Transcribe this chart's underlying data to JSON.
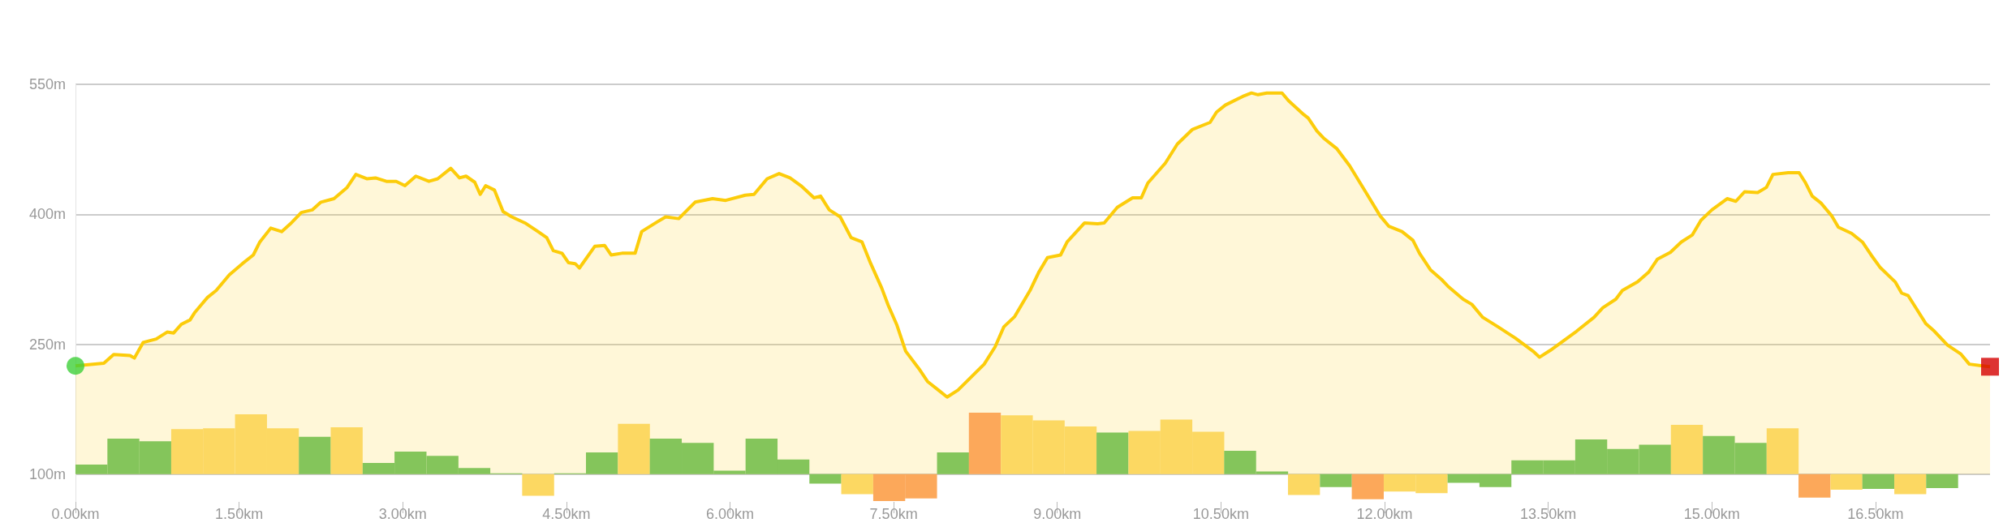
{
  "chart_data": {
    "type": "area",
    "xlim": [
      0,
      17.55
    ],
    "ylim": [
      68,
      550
    ],
    "xticks": [
      {
        "value": 0,
        "label": "0.00km"
      },
      {
        "value": 1.5,
        "label": "1.50km"
      },
      {
        "value": 3,
        "label": "3.00km"
      },
      {
        "value": 4.5,
        "label": "4.50km"
      },
      {
        "value": 6,
        "label": "6.00km"
      },
      {
        "value": 7.5,
        "label": "7.50km"
      },
      {
        "value": 9,
        "label": "9.00km"
      },
      {
        "value": 10.5,
        "label": "10.50km"
      },
      {
        "value": 12,
        "label": "12.00km"
      },
      {
        "value": 13.5,
        "label": "13.50km"
      },
      {
        "value": 15,
        "label": "15.00km"
      },
      {
        "value": 16.5,
        "label": "16.50km"
      }
    ],
    "yticks": [
      {
        "value": 100,
        "label": "100m"
      },
      {
        "value": 250,
        "label": "250m"
      },
      {
        "value": 400,
        "label": "400m"
      },
      {
        "value": 550,
        "label": "550m"
      }
    ],
    "grid": "y",
    "series": [
      {
        "type": "bar",
        "x": [
          0.146,
          0.439,
          0.731,
          1.024,
          1.316,
          1.609,
          1.901,
          2.194,
          2.486,
          2.779,
          3.071,
          3.364,
          3.656,
          3.949,
          4.241,
          4.534,
          4.826,
          5.119,
          5.411,
          5.704,
          5.996,
          6.289,
          6.581,
          6.874,
          7.166,
          7.459,
          7.751,
          8.044,
          8.336,
          8.629,
          8.921,
          9.214,
          9.506,
          9.799,
          10.091,
          10.384,
          10.676,
          10.969,
          11.261,
          11.554,
          11.846,
          12.139,
          12.431,
          12.724,
          13.016,
          13.309,
          13.601,
          13.894,
          14.186,
          14.479,
          14.771,
          15.064,
          15.356,
          15.649,
          15.941,
          16.234,
          16.526,
          16.819,
          17.111
        ],
        "base": [
          100,
          100,
          100,
          100,
          100,
          100,
          100,
          100,
          100,
          100,
          100,
          100,
          100,
          100,
          100,
          100,
          100,
          100,
          100,
          100,
          100,
          100,
          100,
          100,
          100,
          100,
          100,
          100,
          100,
          100,
          100,
          100,
          100,
          100,
          100,
          100,
          100,
          100,
          100,
          100,
          100,
          100,
          100,
          100,
          100,
          100,
          100,
          100,
          100,
          100,
          100,
          100,
          100,
          100,
          100,
          100,
          100,
          100,
          100
        ],
        "values": [
          11,
          41,
          38,
          52,
          53,
          69,
          53,
          43,
          54,
          13,
          26,
          21,
          7,
          1,
          -25,
          1,
          25,
          58,
          41,
          36,
          4,
          41,
          17,
          -11,
          -23,
          -31,
          -28,
          25,
          71,
          68,
          62,
          55,
          48,
          50,
          63,
          49,
          27,
          3,
          -24,
          -15,
          -29,
          -20,
          -22,
          -10,
          -15,
          16,
          16,
          40,
          29,
          34,
          57,
          44,
          36,
          53,
          -27,
          -18,
          -17,
          -23,
          -16
        ],
        "colors": [
          "#84c55b",
          "#84c55b",
          "#84c55b",
          "#fcd862",
          "#fcd862",
          "#fcd862",
          "#fcd862",
          "#84c55b",
          "#fcd862",
          "#84c55b",
          "#84c55b",
          "#84c55b",
          "#84c55b",
          "#84c55b",
          "#fcd862",
          "#84c55b",
          "#84c55b",
          "#fcd862",
          "#84c55b",
          "#84c55b",
          "#84c55b",
          "#84c55b",
          "#84c55b",
          "#84c55b",
          "#fcd862",
          "#fca85a",
          "#fca85a",
          "#84c55b",
          "#fca85a",
          "#fcd862",
          "#fcd862",
          "#fcd862",
          "#84c55b",
          "#fcd862",
          "#fcd862",
          "#fcd862",
          "#84c55b",
          "#84c55b",
          "#fcd862",
          "#84c55b",
          "#fca85a",
          "#fcd862",
          "#fcd862",
          "#84c55b",
          "#84c55b",
          "#84c55b",
          "#84c55b",
          "#84c55b",
          "#84c55b",
          "#84c55b",
          "#fcd862",
          "#84c55b",
          "#84c55b",
          "#fcd862",
          "#fca85a",
          "#fcd862",
          "#84c55b",
          "#fcd862",
          "#84c55b"
        ]
      },
      {
        "color": "#fccc0a",
        "x": [
          0,
          0.26,
          0.35,
          0.5,
          0.54,
          0.62,
          0.74,
          0.84,
          0.9,
          0.97,
          1.05,
          1.09,
          1.21,
          1.29,
          1.41,
          1.53,
          1.63,
          1.69,
          1.79,
          1.89,
          1.97,
          2.07,
          2.17,
          2.25,
          2.37,
          2.49,
          2.57,
          2.67,
          2.75,
          2.85,
          2.94,
          3.02,
          3.12,
          3.24,
          3.32,
          3.44,
          3.52,
          3.58,
          3.66,
          3.71,
          3.76,
          3.84,
          3.92,
          4.0,
          4.12,
          4.24,
          4.32,
          4.38,
          4.46,
          4.52,
          4.58,
          4.62,
          4.76,
          4.85,
          4.91,
          5.01,
          5.13,
          5.19,
          5.33,
          5.41,
          5.53,
          5.68,
          5.84,
          5.96,
          6.14,
          6.22,
          6.34,
          6.45,
          6.55,
          6.65,
          6.77,
          6.83,
          6.91,
          7.01,
          7.11,
          7.21,
          7.29,
          7.39,
          7.45,
          7.53,
          7.61,
          7.73,
          7.81,
          7.91,
          7.99,
          8.09,
          8.21,
          8.33,
          8.43,
          8.51,
          8.61,
          8.75,
          8.83,
          8.91,
          9.03,
          9.09,
          9.25,
          9.37,
          9.43,
          9.55,
          9.69,
          9.77,
          9.83,
          9.99,
          10.1,
          10.24,
          10.4,
          10.46,
          10.54,
          10.7,
          10.78,
          10.84,
          10.92,
          11.06,
          11.12,
          11.26,
          11.3,
          11.38,
          11.44,
          11.56,
          11.68,
          11.84,
          11.96,
          12.04,
          12.16,
          12.26,
          12.32,
          12.42,
          12.52,
          12.58,
          12.72,
          12.8,
          12.9,
          13.04,
          13.2,
          13.36,
          13.42,
          13.52,
          13.76,
          13.92,
          14.0,
          14.12,
          14.18,
          14.32,
          14.42,
          14.5,
          14.62,
          14.72,
          14.82,
          14.9,
          15.0,
          15.14,
          15.22,
          15.3,
          15.42,
          15.5,
          15.56,
          15.7,
          15.8,
          15.86,
          15.92,
          16.0,
          16.1,
          16.16,
          16.28,
          16.38,
          16.46,
          16.54,
          16.68,
          16.74,
          16.8,
          16.88,
          16.96,
          17.04,
          17.16,
          17.28,
          17.36,
          17.48,
          17.55
        ],
        "values": [
          225,
          228,
          238,
          237,
          234,
          252,
          256,
          264,
          263,
          273,
          278,
          286,
          304,
          312,
          330,
          343,
          353,
          368,
          384,
          380,
          389,
          402,
          405,
          414,
          418,
          431,
          446,
          441,
          442,
          438,
          438,
          433,
          444,
          438,
          441,
          453,
          442,
          444,
          437,
          423,
          433,
          428,
          403,
          397,
          390,
          380,
          373,
          358,
          355,
          344,
          343,
          338,
          363,
          364,
          353,
          355,
          355,
          380,
          391,
          397,
          395,
          414,
          418,
          416,
          422,
          423,
          441,
          447,
          442,
          433,
          419,
          421,
          405,
          397,
          373,
          368,
          343,
          315,
          295,
          272,
          242,
          222,
          207,
          197,
          189,
          197,
          212,
          227,
          247,
          270,
          282,
          312,
          333,
          350,
          353,
          368,
          390,
          389,
          390,
          408,
          419,
          419,
          436,
          459,
          481,
          498,
          506,
          518,
          526,
          536,
          540,
          538,
          540,
          540,
          531,
          515,
          511,
          496,
          488,
          476,
          456,
          423,
          398,
          386,
          380,
          370,
          355,
          336,
          325,
          317,
          302,
          296,
          281,
          270,
          257,
          242,
          235,
          243,
          265,
          281,
          292,
          302,
          312,
          322,
          333,
          348,
          356,
          368,
          376,
          393,
          405,
          418,
          415,
          426,
          425,
          431,
          446,
          448,
          448,
          436,
          421,
          413,
          398,
          385,
          378,
          368,
          353,
          339,
          322,
          309,
          306,
          290,
          274,
          265,
          249,
          239,
          227,
          225,
          224
        ]
      },
      {
        "type": "scatter",
        "marker": "circle",
        "color": "#3fd03a",
        "x": [
          0
        ],
        "values": [
          225
        ]
      },
      {
        "type": "scatter",
        "marker": "square",
        "color": "#d40000",
        "x": [
          17.55
        ],
        "values": [
          224
        ]
      }
    ]
  }
}
